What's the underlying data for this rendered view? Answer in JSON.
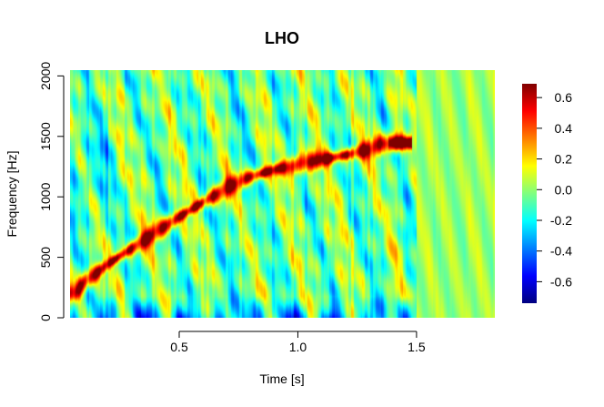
{
  "chart_data": {
    "type": "heatmap",
    "title": "LHO",
    "xlabel": "Time [s]",
    "ylabel": "Frequency [Hz]",
    "xlim": [
      0.04,
      1.83
    ],
    "ylim": [
      0,
      2048
    ],
    "x_ticks": [
      {
        "value": 0.5,
        "label": "0.5"
      },
      {
        "value": 1.0,
        "label": "1.0"
      },
      {
        "value": 1.5,
        "label": "1.5"
      }
    ],
    "y_ticks": [
      {
        "value": 0,
        "label": "0"
      },
      {
        "value": 500,
        "label": "500"
      },
      {
        "value": 1000,
        "label": "1000"
      },
      {
        "value": 1500,
        "label": "1500"
      },
      {
        "value": 2000,
        "label": "2000"
      }
    ],
    "colorbar": {
      "range": [
        -0.74,
        0.69
      ],
      "ticks": [
        {
          "value": 0.6,
          "label": "0.6"
        },
        {
          "value": 0.4,
          "label": "0.4"
        },
        {
          "value": 0.2,
          "label": "0.2"
        },
        {
          "value": 0.0,
          "label": "0.0"
        },
        {
          "value": -0.2,
          "label": "-0.2"
        },
        {
          "value": -0.4,
          "label": "-0.4"
        },
        {
          "value": -0.6,
          "label": "-0.6"
        }
      ],
      "colormap": [
        "#00007f",
        "#0000ff",
        "#007fff",
        "#00ffff",
        "#7fff7f",
        "#ffff00",
        "#ff7f00",
        "#ff0000",
        "#7f0000"
      ]
    },
    "chirp_track": [
      {
        "time": 0.06,
        "freq": 210
      },
      {
        "time": 0.1,
        "freq": 300
      },
      {
        "time": 0.2,
        "freq": 450
      },
      {
        "time": 0.3,
        "freq": 580
      },
      {
        "time": 0.4,
        "freq": 710
      },
      {
        "time": 0.5,
        "freq": 840
      },
      {
        "time": 0.6,
        "freq": 960
      },
      {
        "time": 0.7,
        "freq": 1080
      },
      {
        "time": 0.8,
        "freq": 1170
      },
      {
        "time": 0.9,
        "freq": 1230
      },
      {
        "time": 1.0,
        "freq": 1270
      },
      {
        "time": 1.1,
        "freq": 1310
      },
      {
        "time": 1.2,
        "freq": 1350
      },
      {
        "time": 1.3,
        "freq": 1400
      },
      {
        "time": 1.35,
        "freq": 1440
      },
      {
        "time": 1.45,
        "freq": 1450
      }
    ],
    "grid": false,
    "legend": "colorbar-right"
  }
}
